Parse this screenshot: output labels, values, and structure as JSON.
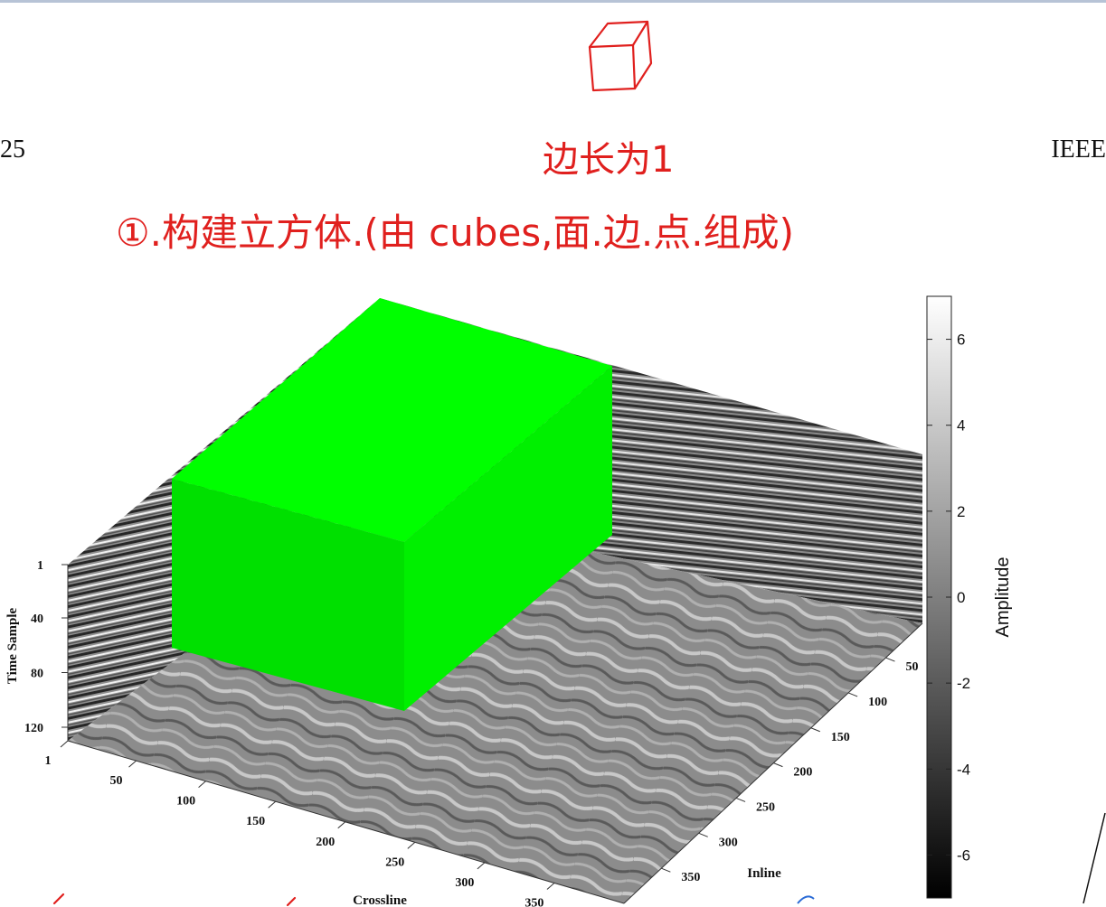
{
  "header": {
    "left": "25",
    "right": "IEEE"
  },
  "annotations": {
    "line1": "边长为1",
    "line2": "①.构建立方体.(由 cubes,面.边.点.组成)"
  },
  "chart_data": {
    "type": "3d-volume-slices",
    "title": "",
    "axes": {
      "time_sample": {
        "label": "Time Sample",
        "ticks": [
          1,
          40,
          80,
          120
        ]
      },
      "crossline": {
        "label": "Crossline",
        "ticks": [
          1,
          50,
          100,
          150,
          200,
          250,
          300,
          350
        ]
      },
      "inline": {
        "label": "Inline",
        "ticks": [
          50,
          100,
          150,
          200,
          250,
          300,
          350
        ]
      }
    },
    "colorbar": {
      "label": "Amplitude",
      "ticks": [
        6,
        4,
        2,
        0,
        -2,
        -4,
        -6
      ],
      "range": [
        -7,
        7
      ],
      "colormap": "gray"
    },
    "cube": {
      "color": "#00ff00",
      "edge_length": 1
    }
  }
}
